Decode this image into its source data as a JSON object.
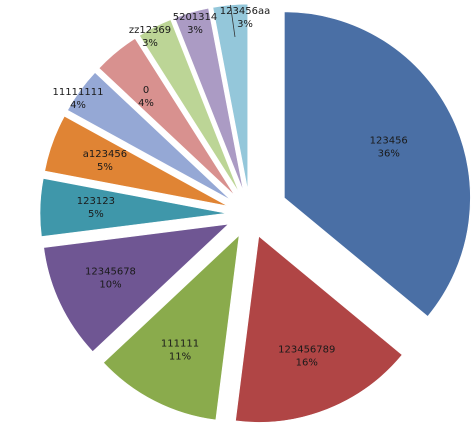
{
  "chart_data": {
    "type": "pie",
    "exploded": true,
    "legend": "none",
    "series": [
      {
        "category": "123456",
        "value": 36,
        "label": "36%",
        "color": "#4a6fa5"
      },
      {
        "category": "123456789",
        "value": 16,
        "label": "16%",
        "color": "#b04545"
      },
      {
        "category": "111111",
        "value": 11,
        "label": "11%",
        "color": "#8aab4c"
      },
      {
        "category": "12345678",
        "value": 10,
        "label": "10%",
        "color": "#6f5693"
      },
      {
        "category": "123123",
        "value": 5,
        "label": "5%",
        "color": "#3f97aa"
      },
      {
        "category": "a123456",
        "value": 5,
        "label": "5%",
        "color": "#e08434"
      },
      {
        "category": "11111111",
        "value": 4,
        "label": "4%",
        "color": "#95a8d5"
      },
      {
        "category": "0",
        "value": 4,
        "label": "4%",
        "color": "#d8918f"
      },
      {
        "category": "zz12369",
        "value": 3,
        "label": "3%",
        "color": "#bcd596"
      },
      {
        "category": "5201314",
        "value": 3,
        "label": "3%",
        "color": "#ab9bc4"
      },
      {
        "category": "123456aa",
        "value": 3,
        "label": "3%",
        "color": "#94c7da"
      }
    ]
  }
}
